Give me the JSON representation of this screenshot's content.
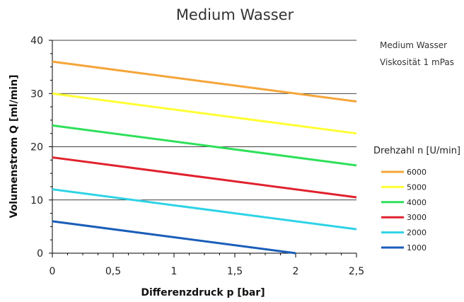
{
  "chart_data": {
    "type": "line",
    "title": "Medium Wasser",
    "xlabel": "Differenzdruck p [bar]",
    "ylabel": "Volumenstrom Q [ml/min]",
    "xlim": [
      0,
      2.5
    ],
    "ylim": [
      0,
      40
    ],
    "xticks": [
      "0",
      "0,5",
      "1",
      "1,5",
      "2",
      "2,5"
    ],
    "xtick_values": [
      0,
      0.5,
      1,
      1.5,
      2,
      2.5
    ],
    "yticks": [
      "0",
      "10",
      "20",
      "30",
      "40"
    ],
    "ytick_values": [
      0,
      10,
      20,
      30,
      40
    ],
    "grid": "horizontal",
    "legend_position": "right",
    "legend_title": "Drehzahl n [U/min]",
    "notes": [
      "Medium Wasser",
      "Viskosität 1 mPas"
    ],
    "series": [
      {
        "name": "6000",
        "color": "#F5A53A",
        "x": [
          0,
          2.5
        ],
        "y": [
          36,
          28.5
        ]
      },
      {
        "name": "5000",
        "color": "#FFFF33",
        "x": [
          0,
          2.5
        ],
        "y": [
          30,
          22.5
        ]
      },
      {
        "name": "4000",
        "color": "#2EE05A",
        "x": [
          0,
          2.5
        ],
        "y": [
          24,
          16.5
        ]
      },
      {
        "name": "3000",
        "color": "#E0222E",
        "x": [
          0,
          2.5
        ],
        "y": [
          18,
          10.5
        ]
      },
      {
        "name": "2000",
        "color": "#2ED3E6",
        "x": [
          0,
          2.5
        ],
        "y": [
          12,
          4.5
        ]
      },
      {
        "name": "1000",
        "color": "#1A5DB8",
        "x": [
          0,
          2
        ],
        "y": [
          6,
          0
        ]
      }
    ]
  }
}
